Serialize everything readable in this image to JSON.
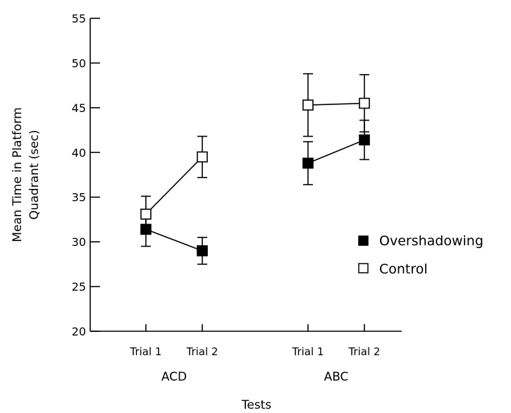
{
  "chart_data": {
    "type": "line",
    "title": "",
    "xlabel": "Tests",
    "ylabel_line1": "Mean Time in Platform",
    "ylabel_line2": "Quadrant (sec)",
    "ylim": [
      20,
      55
    ],
    "yticks": [
      20,
      25,
      30,
      35,
      40,
      45,
      50,
      55
    ],
    "groups": [
      {
        "label": "ACD",
        "categories": [
          "Trial 1",
          "Trial 2"
        ]
      },
      {
        "label": "ABC",
        "categories": [
          "Trial 1",
          "Trial 2"
        ]
      }
    ],
    "series": [
      {
        "name": "Overshadowing",
        "marker": "filled-square",
        "color": "#000000",
        "values": [
          [
            31.4,
            29.0
          ],
          [
            38.8,
            41.4
          ]
        ],
        "errors": [
          [
            1.9,
            1.5
          ],
          [
            2.4,
            2.2
          ]
        ]
      },
      {
        "name": "Control",
        "marker": "open-square",
        "color": "#000000",
        "values": [
          [
            33.1,
            39.5
          ],
          [
            45.3,
            45.5
          ]
        ],
        "errors": [
          [
            2.0,
            2.3
          ],
          [
            3.5,
            3.2
          ]
        ]
      }
    ],
    "legend_position": "right"
  }
}
